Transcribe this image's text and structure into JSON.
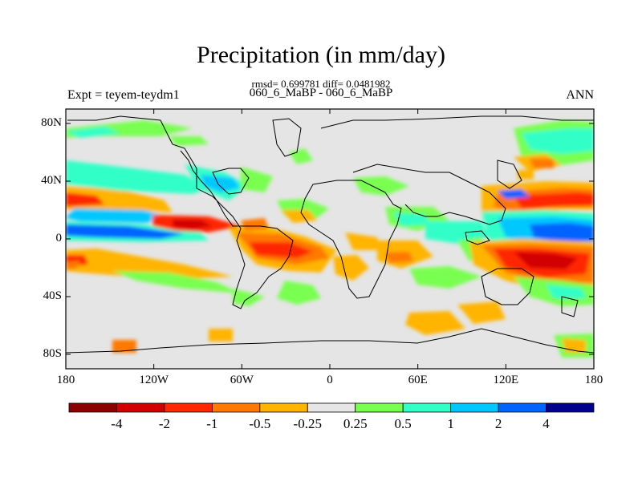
{
  "title": "Precipitation (in mm/day)",
  "stats": "rmsd= 0.699781 diff= 0.0481982",
  "subtitle": "060_6_MaBP - 060_6_MaBP",
  "left_label": "Expt = teyem-teydm1",
  "right_label": "ANN",
  "map": {
    "background_color": "#e5e5e5",
    "frame_color": "#000000",
    "lon_range": [
      -180,
      180
    ],
    "lat_range": [
      -90,
      90
    ],
    "lat_ticks": [
      {
        "lat": 80,
        "label": "80N"
      },
      {
        "lat": 40,
        "label": "40N"
      },
      {
        "lat": 0,
        "label": "0"
      },
      {
        "lat": -40,
        "label": "40S"
      },
      {
        "lat": -80,
        "label": "80S"
      }
    ],
    "lon_ticks": [
      {
        "lon": -180,
        "label": "180"
      },
      {
        "lon": -120,
        "label": "120W"
      },
      {
        "lon": -60,
        "label": "60W"
      },
      {
        "lon": 0,
        "label": "0"
      },
      {
        "lon": 60,
        "label": "60E"
      },
      {
        "lon": 120,
        "label": "120E"
      },
      {
        "lon": 180,
        "label": "180"
      }
    ]
  },
  "colorbar": {
    "colors": [
      "#8b0000",
      "#d20000",
      "#ff2800",
      "#ff7800",
      "#ffb400",
      "#e6e6e6",
      "#78ff50",
      "#32ffc8",
      "#00c8ff",
      "#0064ff",
      "#00008c"
    ],
    "labels": [
      "-4",
      "-2",
      "-1",
      "-0.5",
      "-0.25",
      "0.25",
      "0.5",
      "1",
      "2",
      "4"
    ]
  }
}
